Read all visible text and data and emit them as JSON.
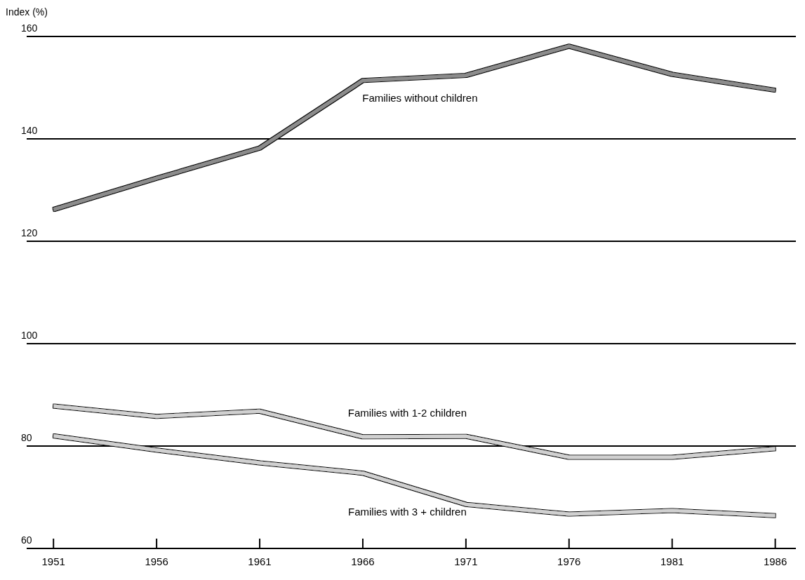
{
  "chart_data": {
    "type": "line",
    "ylabel": "Index (%)",
    "x": [
      1951,
      1956,
      1961,
      1966,
      1971,
      1976,
      1981,
      1986
    ],
    "xlim": [
      1949.7,
      1987
    ],
    "xticks": [
      1951,
      1956,
      1961,
      1966,
      1971,
      1976,
      1981,
      1986
    ],
    "ylim": [
      60,
      160
    ],
    "yticks": [
      60,
      80,
      100,
      120,
      140,
      160
    ],
    "grid": "y",
    "series": [
      {
        "name": "Families without children",
        "color": "#8c8c8c",
        "values": [
          126.2,
          132.3,
          138.2,
          151.4,
          152.4,
          158.1,
          152.6,
          149.5
        ]
      },
      {
        "name": "Families with 1-2 children",
        "color": "#d0d0d0",
        "values": [
          87.8,
          85.8,
          86.8,
          81.8,
          81.9,
          77.8,
          77.8,
          79.5
        ]
      },
      {
        "name": "Families with 3 + children",
        "color": "#d0d0d0",
        "values": [
          82.0,
          79.2,
          76.7,
          74.7,
          68.6,
          66.7,
          67.4,
          66.4
        ]
      }
    ]
  }
}
